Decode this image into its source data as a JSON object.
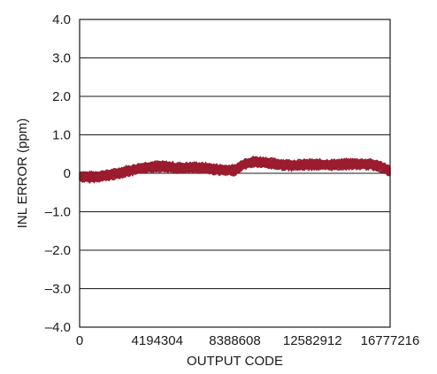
{
  "chart_data": {
    "type": "line",
    "title": "",
    "xlabel": "OUTPUT CODE",
    "ylabel": "INL ERROR (ppm)",
    "xlim": [
      0,
      16777216
    ],
    "ylim": [
      -4.0,
      4.0
    ],
    "x_ticks": [
      0,
      4194304,
      8388608,
      12582912,
      16777216
    ],
    "x_tick_labels": [
      "0",
      "4194304",
      "8388608",
      "12582912",
      "16777216"
    ],
    "y_ticks": [
      -4.0,
      -3.0,
      -2.0,
      -1.0,
      0,
      1.0,
      2.0,
      3.0,
      4.0
    ],
    "y_tick_labels": [
      "–4.0",
      "–3.0",
      "–2.0",
      "–1.0",
      "0",
      "1.0",
      "2.0",
      "3.0",
      "4.0"
    ],
    "grid": "horizontal",
    "series_color": "#9b1b2f",
    "series": [
      {
        "band_half_width_ppm": 0.09,
        "x": [
          0,
          524288,
          1048576,
          1572864,
          2097152,
          2621440,
          3145728,
          3670016,
          4194304,
          4718592,
          5242880,
          5767168,
          6291456,
          6815744,
          7340032,
          7864320,
          8388608,
          8912896,
          9437184,
          9961472,
          10485760,
          11010048,
          11534336,
          12058624,
          12582912,
          13107200,
          13631488,
          14155776,
          14680064,
          15204352,
          15728640,
          16252928,
          16777216
        ],
        "values": [
          -0.08,
          -0.1,
          -0.08,
          -0.05,
          0.0,
          0.06,
          0.11,
          0.16,
          0.18,
          0.17,
          0.14,
          0.14,
          0.15,
          0.13,
          0.1,
          0.08,
          0.08,
          0.25,
          0.3,
          0.28,
          0.25,
          0.22,
          0.21,
          0.22,
          0.23,
          0.22,
          0.22,
          0.23,
          0.24,
          0.24,
          0.23,
          0.18,
          0.05
        ]
      }
    ]
  }
}
